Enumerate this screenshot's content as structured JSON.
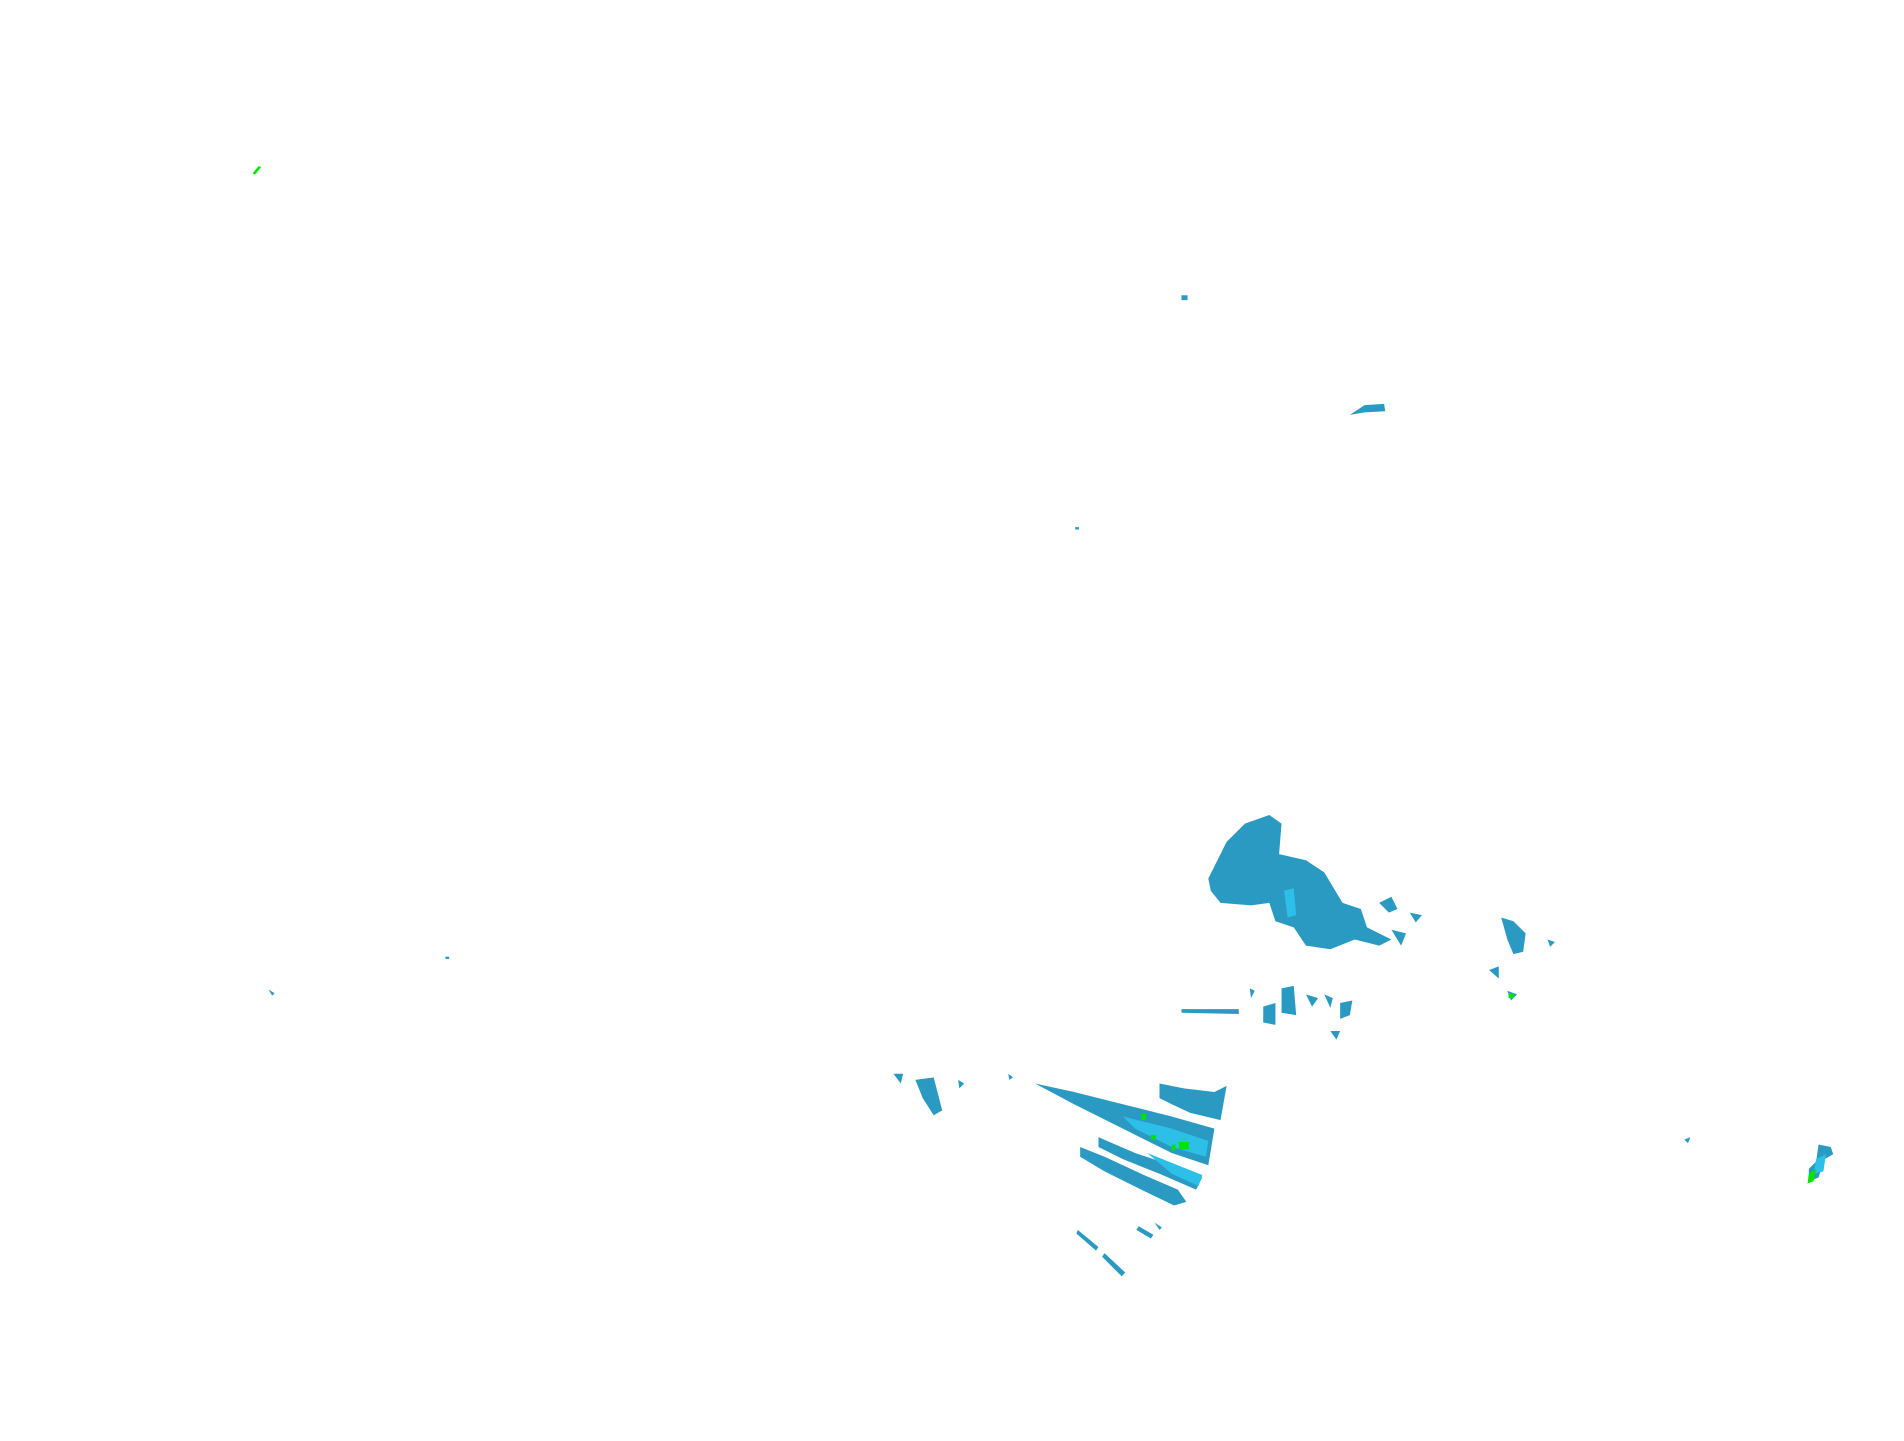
{
  "map": {
    "layer": "radar-reflectivity",
    "colors": {
      "background": "#ffffff",
      "low": "#2b9ac3",
      "medium": "#2cbfe8",
      "high": "#00e400"
    }
  }
}
